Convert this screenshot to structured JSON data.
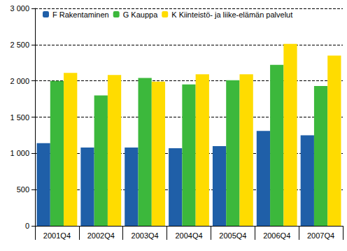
{
  "chart_data": {
    "type": "bar",
    "categories": [
      "2001Q4",
      "2002Q4",
      "2003Q4",
      "2004Q4",
      "2005Q4",
      "2006Q4",
      "2007Q4"
    ],
    "series": [
      {
        "name": "F Rakentaminen",
        "color": "#1f5fa8",
        "values": [
          1140,
          1080,
          1080,
          1070,
          1100,
          1310,
          1250
        ]
      },
      {
        "name": "G Kauppa",
        "color": "#3cb83c",
        "values": [
          2000,
          1800,
          2040,
          1950,
          2010,
          2220,
          1930
        ]
      },
      {
        "name": "K Kiinteistö- ja liike-elämän palvelut",
        "color": "#ffdc00",
        "values": [
          2110,
          2080,
          1990,
          2090,
          2090,
          2510,
          2350
        ]
      }
    ],
    "ylim": [
      0,
      3000
    ],
    "yticks": [
      0,
      500,
      {
        "value": 1000,
        "label": "1 000"
      },
      {
        "value": 1500,
        "label": "1 500"
      },
      {
        "value": 2000,
        "label": "2 000"
      },
      {
        "value": 2500,
        "label": "2 500"
      },
      {
        "value": 3000,
        "label": "3 000"
      }
    ],
    "grid": true,
    "legend": "upper left"
  }
}
